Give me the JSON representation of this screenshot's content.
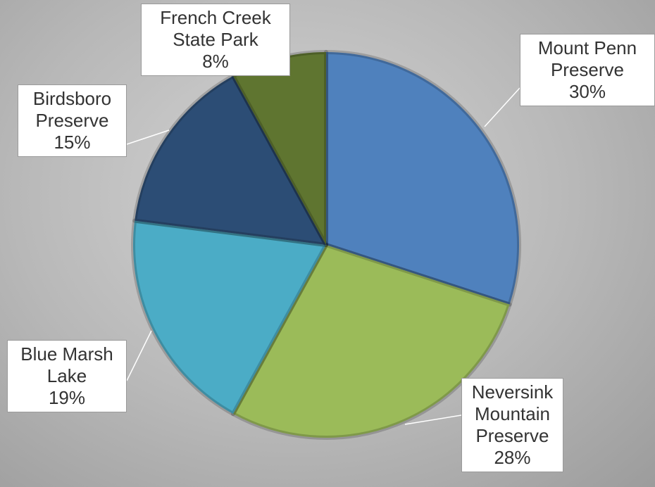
{
  "chart_data": {
    "type": "pie",
    "categories": [
      "Mount Penn Preserve",
      "Neversink Mountain Preserve",
      "Blue Marsh Lake",
      "Birdsboro Preserve",
      "French Creek State Park"
    ],
    "values": [
      30,
      28,
      19,
      15,
      8
    ],
    "value_labels": [
      "30%",
      "28%",
      "19%",
      "15%",
      "8%"
    ],
    "colors": [
      "#4f81bd",
      "#9bbb59",
      "#4bacc6",
      "#2c4d75",
      "#5f7530"
    ]
  }
}
